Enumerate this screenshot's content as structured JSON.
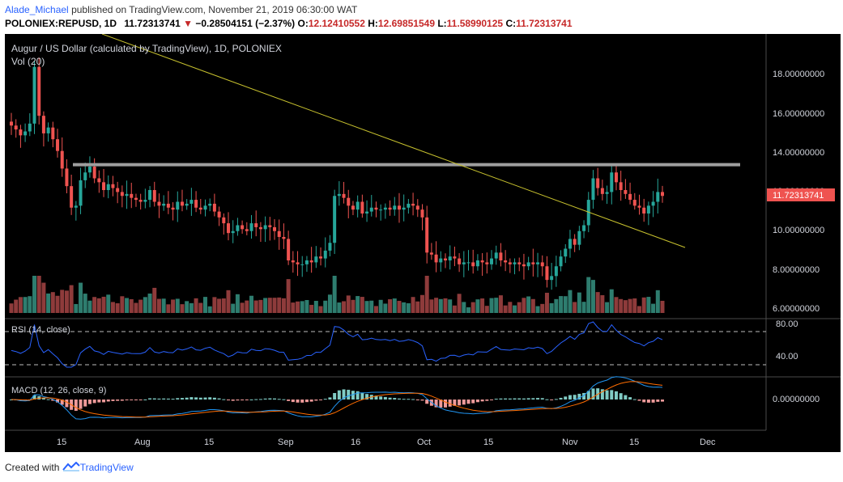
{
  "header": {
    "publisher": "Alade_Michael",
    "published_text": "published on TradingView.com, November 21, 2019 06:30:00 WAT",
    "symbol": "POLONIEX:REPUSD, 1D",
    "last": "11.72313741",
    "change_arrow": "▼",
    "change": "−0.28504151 (−2.37%)",
    "o_label": "O:",
    "o": "12.12410552",
    "h_label": "H:",
    "h": "12.69851549",
    "l_label": "L:",
    "l": "11.58990125",
    "c_label": "C:",
    "c": "11.72313741"
  },
  "legend": {
    "title": "Augur / US Dollar (calculated by TradingView), 1D, POLONIEX",
    "vol": "Vol (20)",
    "rsi": "RSI (14, close)",
    "macd": "MACD (12, 26, close, 9)"
  },
  "price_axis": {
    "ticks": [
      "18.00000000",
      "16.00000000",
      "14.00000000",
      "12.00000000",
      "10.00000000",
      "8.00000000",
      "6.00000000"
    ],
    "ticks_values": [
      18,
      16,
      14,
      12,
      10,
      8,
      6
    ],
    "current_label": "11.72313741"
  },
  "rsi_axis": {
    "ticks": [
      "80.00",
      "40.00"
    ]
  },
  "macd_axis": {
    "ticks": [
      "0.00000000"
    ]
  },
  "time_axis": [
    "15",
    "Aug",
    "15",
    "Sep",
    "16",
    "Oct",
    "15",
    "Nov",
    "15",
    "Dec"
  ],
  "footer": {
    "created_with": "Created with",
    "brand": "TradingView"
  },
  "colors": {
    "up": "#26a69a",
    "down": "#ef5350",
    "vol_up": "#2e7d6f",
    "vol_down": "#8e3b3b",
    "trendline": "#c8c22e",
    "resistance": "#9e9e9e",
    "rsi": "#2962ff",
    "macd": "#2196f3",
    "signal": "#ff6d00",
    "price_tag": "#ef5350"
  },
  "chart_data": {
    "type": "candlestick",
    "symbol": "POLONIEX:REPUSD",
    "interval": "1D",
    "approx_close_series": [
      15.3,
      15.1,
      14.8,
      15.0,
      15.4,
      18.3,
      15.8,
      14.9,
      15.2,
      14.6,
      14.0,
      13.1,
      12.2,
      11.1,
      11.2,
      12.5,
      12.9,
      13.2,
      12.6,
      12.4,
      12.0,
      12.3,
      12.1,
      11.9,
      11.7,
      11.8,
      11.6,
      11.5,
      11.4,
      11.5,
      12.0,
      11.4,
      11.2,
      11.3,
      11.1,
      11.0,
      11.4,
      11.2,
      11.3,
      11.5,
      11.1,
      11.0,
      11.2,
      11.3,
      10.9,
      10.6,
      10.3,
      9.8,
      9.9,
      10.2,
      10.0,
      9.9,
      10.3,
      10.1,
      10.0,
      10.2,
      10.1,
      9.9,
      9.6,
      9.5,
      8.4,
      8.3,
      8.2,
      8.2,
      8.4,
      8.3,
      8.6,
      8.5,
      8.9,
      9.3,
      11.7,
      11.8,
      11.6,
      11.2,
      11.0,
      11.4,
      10.8,
      10.9,
      11.1,
      11.0,
      11.0,
      11.1,
      11.0,
      11.2,
      11.0,
      11.1,
      11.3,
      11.2,
      11.0,
      10.6,
      8.8,
      8.7,
      8.3,
      8.5,
      8.4,
      8.6,
      8.5,
      8.2,
      8.3,
      8.3,
      8.1,
      8.4,
      8.3,
      8.2,
      8.5,
      8.8,
      8.4,
      8.3,
      8.2,
      8.3,
      8.2,
      8.1,
      8.3,
      8.2,
      8.3,
      8.1,
      7.4,
      7.6,
      8.1,
      8.6,
      9.0,
      9.5,
      9.2,
      9.9,
      10.2,
      11.5,
      12.6,
      12.1,
      11.8,
      11.9,
      12.9,
      12.4,
      12.0,
      11.8,
      11.5,
      11.2,
      11.1,
      10.8,
      11.2,
      11.4,
      11.9,
      11.7
    ],
    "resistance_level": 13.3,
    "trendline": [
      {
        "x": "Jul 1",
        "y": 20.0
      },
      {
        "x": "Dec 2",
        "y": 9.2
      }
    ]
  }
}
